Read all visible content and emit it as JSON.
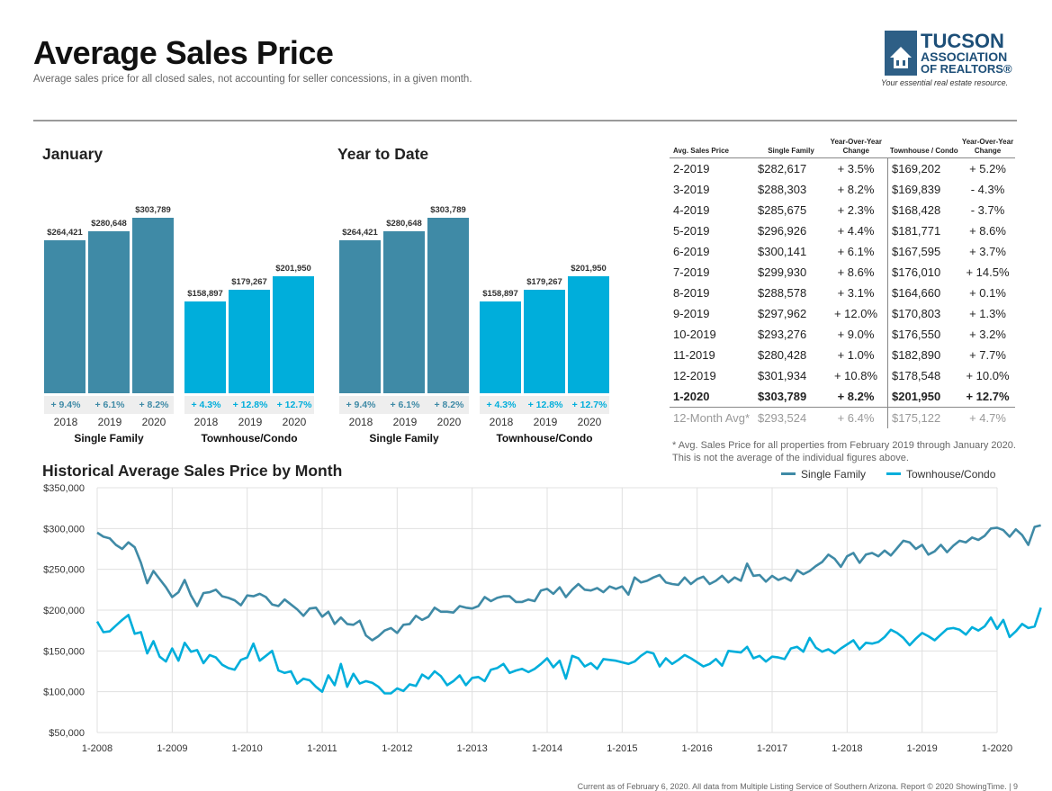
{
  "header": {
    "title": "Average Sales Price",
    "subtitle": "Average sales price for all closed sales, not accounting for seller concessions, in a given month."
  },
  "logo": {
    "line1": "TUCSON",
    "line2": "ASSOCIATION",
    "line3": "OF REALTORS®",
    "tagline": "Your essential real estate resource."
  },
  "colors": {
    "single_family": "#3f8aa6",
    "townhouse": "#00aedb"
  },
  "chart_data": [
    {
      "type": "bar",
      "title": "January",
      "groups": [
        {
          "name": "Single Family",
          "categories": [
            "2018",
            "2019",
            "2020"
          ],
          "values": [
            264421,
            280648,
            303789
          ],
          "labels": [
            "$264,421",
            "$280,648",
            "$303,789"
          ],
          "changes": [
            "+ 9.4%",
            "+ 6.1%",
            "+ 8.2%"
          ]
        },
        {
          "name": "Townhouse/Condo",
          "categories": [
            "2018",
            "2019",
            "2020"
          ],
          "values": [
            158897,
            179267,
            201950
          ],
          "labels": [
            "$158,897",
            "$179,267",
            "$201,950"
          ],
          "changes": [
            "+ 4.3%",
            "+ 12.8%",
            "+ 12.7%"
          ]
        }
      ]
    },
    {
      "type": "bar",
      "title": "Year to Date",
      "groups": [
        {
          "name": "Single Family",
          "categories": [
            "2018",
            "2019",
            "2020"
          ],
          "values": [
            264421,
            280648,
            303789
          ],
          "labels": [
            "$264,421",
            "$280,648",
            "$303,789"
          ],
          "changes": [
            "+ 9.4%",
            "+ 6.1%",
            "+ 8.2%"
          ]
        },
        {
          "name": "Townhouse/Condo",
          "categories": [
            "2018",
            "2019",
            "2020"
          ],
          "values": [
            158897,
            179267,
            201950
          ],
          "labels": [
            "$158,897",
            "$179,267",
            "$201,950"
          ],
          "changes": [
            "+ 4.3%",
            "+ 12.8%",
            "+ 12.7%"
          ]
        }
      ]
    },
    {
      "type": "table",
      "columns": [
        "Avg. Sales Price",
        "Single Family",
        "Year-Over-Year Change",
        "Townhouse / Condo",
        "Year-Over-Year Change"
      ],
      "rows": [
        [
          "2-2019",
          "$282,617",
          "+ 3.5%",
          "$169,202",
          "+ 5.2%"
        ],
        [
          "3-2019",
          "$288,303",
          "+ 8.2%",
          "$169,839",
          "- 4.3%"
        ],
        [
          "4-2019",
          "$285,675",
          "+ 2.3%",
          "$168,428",
          "- 3.7%"
        ],
        [
          "5-2019",
          "$296,926",
          "+ 4.4%",
          "$181,771",
          "+ 8.6%"
        ],
        [
          "6-2019",
          "$300,141",
          "+ 6.1%",
          "$167,595",
          "+ 3.7%"
        ],
        [
          "7-2019",
          "$299,930",
          "+ 8.6%",
          "$176,010",
          "+ 14.5%"
        ],
        [
          "8-2019",
          "$288,578",
          "+ 3.1%",
          "$164,660",
          "+ 0.1%"
        ],
        [
          "9-2019",
          "$297,962",
          "+ 12.0%",
          "$170,803",
          "+ 1.3%"
        ],
        [
          "10-2019",
          "$293,276",
          "+ 9.0%",
          "$176,550",
          "+ 3.2%"
        ],
        [
          "11-2019",
          "$280,428",
          "+ 1.0%",
          "$182,890",
          "+ 7.7%"
        ],
        [
          "12-2019",
          "$301,934",
          "+ 10.8%",
          "$178,548",
          "+ 10.0%"
        ],
        [
          "1-2020",
          "$303,789",
          "+ 8.2%",
          "$201,950",
          "+ 12.7%"
        ]
      ],
      "avg_row": [
        "12-Month Avg*",
        "$293,524",
        "+ 6.4%",
        "$175,122",
        "+ 4.7%"
      ],
      "footnote": "* Avg. Sales Price for all properties from February 2019 through January 2020. This is not the average of the individual figures above."
    },
    {
      "type": "line",
      "title": "Historical Average Sales Price by Month",
      "x_ticks": [
        "1-2008",
        "1-2009",
        "1-2010",
        "1-2011",
        "1-2012",
        "1-2013",
        "1-2014",
        "1-2015",
        "1-2016",
        "1-2017",
        "1-2018",
        "1-2019",
        "1-2020"
      ],
      "y_ticks": [
        "$350,000",
        "$300,000",
        "$250,000",
        "$200,000",
        "$150,000",
        "$100,000",
        "$50,000"
      ],
      "ylim": [
        50000,
        350000
      ],
      "grid": true,
      "legend": "top-right",
      "x_start": "1-2008",
      "series": [
        {
          "name": "Single Family",
          "color": "#3f8aa6",
          "values": [
            295000,
            290000,
            288000,
            280000,
            275000,
            283000,
            277000,
            258000,
            233000,
            248000,
            238000,
            228000,
            216000,
            222000,
            237000,
            218000,
            205000,
            221000,
            222000,
            225000,
            217000,
            215000,
            212000,
            206000,
            218000,
            217000,
            220000,
            216000,
            207000,
            205000,
            213000,
            207000,
            201000,
            193000,
            202000,
            203000,
            192000,
            198000,
            183000,
            191000,
            183000,
            182000,
            187000,
            169000,
            163000,
            168000,
            175000,
            178000,
            172000,
            182000,
            183000,
            193000,
            188000,
            192000,
            203000,
            198000,
            198000,
            197000,
            205000,
            203000,
            202000,
            205000,
            216000,
            211000,
            215000,
            217000,
            217000,
            210000,
            210000,
            213000,
            211000,
            224000,
            226000,
            220000,
            228000,
            216000,
            225000,
            232000,
            225000,
            224000,
            227000,
            222000,
            229000,
            226000,
            229000,
            219000,
            240000,
            234000,
            236000,
            240000,
            243000,
            234000,
            232000,
            231000,
            240000,
            232000,
            238000,
            241000,
            232000,
            236000,
            242000,
            234000,
            240000,
            236000,
            257000,
            242000,
            243000,
            235000,
            242000,
            237000,
            240000,
            236000,
            249000,
            244000,
            248000,
            254000,
            259000,
            268000,
            263000,
            253000,
            266000,
            270000,
            258000,
            268000,
            270000,
            266000,
            273000,
            267000,
            276000,
            285000,
            283000,
            275000,
            280000,
            268000,
            272000,
            280000,
            271000,
            279000,
            285000,
            283000,
            289000,
            286000,
            291000,
            300000,
            301000,
            298000,
            290000,
            299000,
            292000,
            280000,
            302000,
            304000
          ]
        },
        {
          "name": "Townhouse/Condo",
          "color": "#00aedb",
          "values": [
            186000,
            173000,
            174000,
            181000,
            188000,
            194000,
            171000,
            173000,
            147000,
            162000,
            143000,
            137000,
            153000,
            138000,
            160000,
            149000,
            151000,
            135000,
            145000,
            142000,
            133000,
            129000,
            127000,
            139000,
            142000,
            159000,
            138000,
            144000,
            150000,
            126000,
            123000,
            125000,
            110000,
            116000,
            114000,
            106000,
            100000,
            120000,
            108000,
            134000,
            106000,
            122000,
            110000,
            113000,
            111000,
            106000,
            98000,
            98000,
            104000,
            101000,
            109000,
            107000,
            121000,
            116000,
            125000,
            119000,
            108000,
            113000,
            120000,
            108000,
            117000,
            118000,
            113000,
            127000,
            129000,
            134000,
            123000,
            126000,
            128000,
            124000,
            128000,
            134000,
            141000,
            130000,
            138000,
            116000,
            144000,
            141000,
            131000,
            135000,
            128000,
            140000,
            139000,
            138000,
            136000,
            134000,
            137000,
            144000,
            149000,
            147000,
            131000,
            141000,
            134000,
            139000,
            145000,
            141000,
            136000,
            131000,
            134000,
            140000,
            132000,
            150000,
            149000,
            148000,
            155000,
            141000,
            144000,
            137000,
            143000,
            142000,
            140000,
            153000,
            155000,
            149000,
            166000,
            154000,
            149000,
            152000,
            147000,
            153000,
            158000,
            163000,
            152000,
            160000,
            159000,
            161000,
            167000,
            176000,
            172000,
            166000,
            157000,
            165000,
            172000,
            168000,
            163000,
            170000,
            177000,
            178000,
            176000,
            170000,
            179000,
            175000,
            180000,
            191000,
            177000,
            188000,
            167000,
            174000,
            183000,
            178000,
            180000,
            203000
          ]
        }
      ]
    }
  ],
  "footer": "Current as of February 6, 2020. All data from Multiple Listing Service of Southern Arizona. Report © 2020 ShowingTime. | 9"
}
